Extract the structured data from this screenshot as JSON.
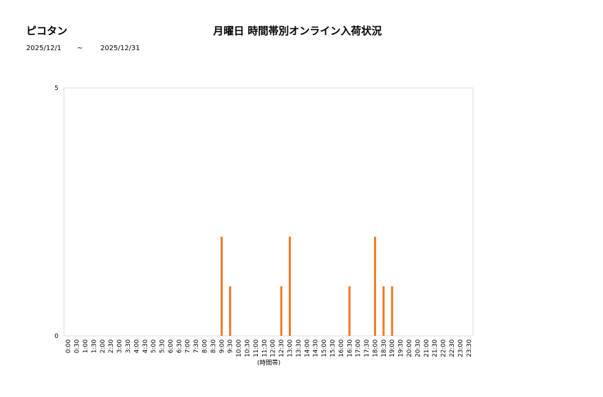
{
  "header": {
    "store_name": "ピコタン",
    "title": "月曜日 時間帯別オンライン入荷状況",
    "date_from": "2025/12/1",
    "date_sep": "~",
    "date_to": "2025/12/31"
  },
  "chart_data": {
    "type": "bar",
    "title": "月曜日 時間帯別オンライン入荷状況",
    "xlabel": "(時間帯)",
    "ylabel": "",
    "ylim": [
      0,
      5
    ],
    "yticks": [
      "0",
      "5"
    ],
    "grid": false,
    "categories": [
      "0:00",
      "0:30",
      "1:00",
      "1:30",
      "2:00",
      "2:30",
      "3:00",
      "3:30",
      "4:00",
      "4:30",
      "5:00",
      "5:30",
      "6:00",
      "6:30",
      "7:00",
      "7:30",
      "8:00",
      "8:30",
      "9:00",
      "9:30",
      "10:00",
      "10:30",
      "11:00",
      "11:30",
      "12:00",
      "12:30",
      "13:00",
      "13:30",
      "14:00",
      "14:30",
      "15:00",
      "15:30",
      "16:00",
      "16:30",
      "17:00",
      "17:30",
      "18:00",
      "18:30",
      "19:00",
      "19:30",
      "20:00",
      "20:30",
      "21:00",
      "21:30",
      "22:00",
      "22:30",
      "23:00",
      "23:30"
    ],
    "values": [
      0,
      0,
      0,
      0,
      0,
      0,
      0,
      0,
      0,
      0,
      0,
      0,
      0,
      0,
      0,
      0,
      0,
      0,
      2,
      1,
      0,
      0,
      0,
      0,
      0,
      1,
      2,
      0,
      0,
      0,
      0,
      0,
      0,
      1,
      0,
      0,
      2,
      1,
      1,
      0,
      0,
      0,
      0,
      0,
      0,
      0,
      0,
      0
    ],
    "bar_color": "#f07820"
  }
}
